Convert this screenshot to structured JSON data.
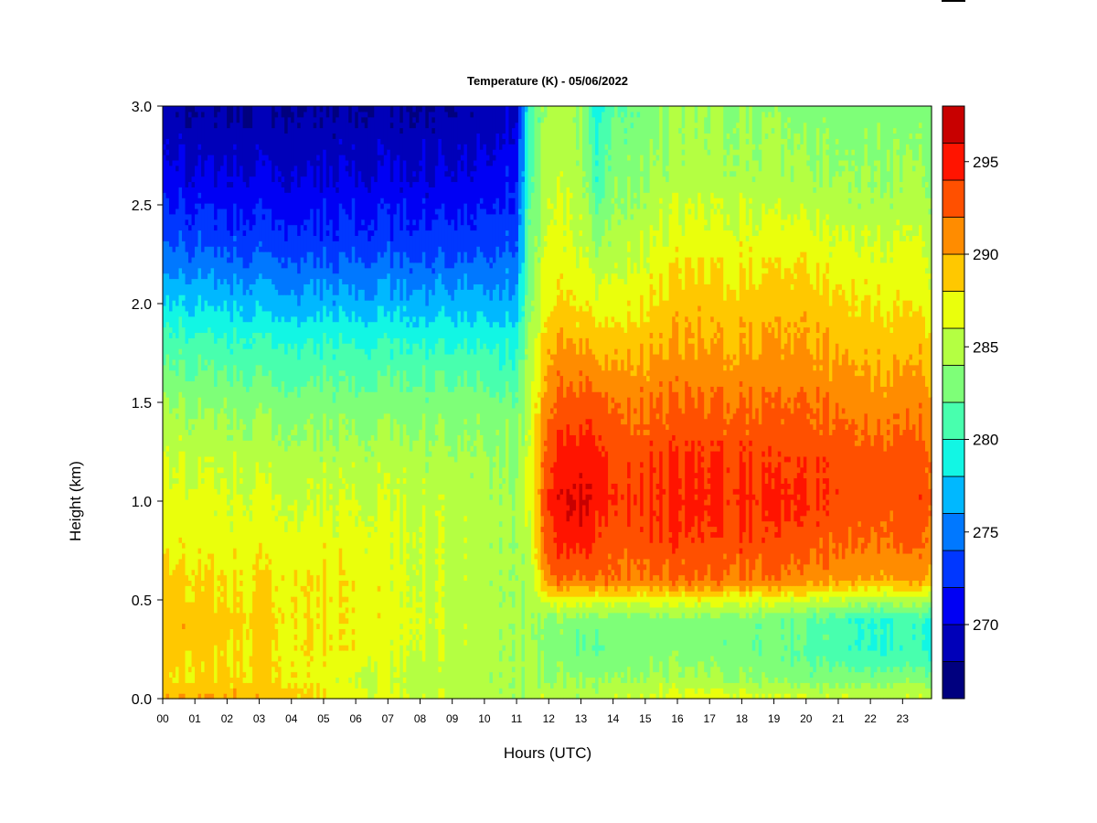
{
  "chart_data": {
    "type": "heatmap",
    "title": "Temperature (K) - 05/06/2022",
    "xlabel": "Hours (UTC)",
    "ylabel": "Height (km)",
    "xlim": [
      0,
      23.9
    ],
    "ylim": [
      0,
      3.0
    ],
    "x_ticks": [
      {
        "value": 0,
        "label": "00"
      },
      {
        "value": 1,
        "label": "01"
      },
      {
        "value": 2,
        "label": "02"
      },
      {
        "value": 3,
        "label": "03"
      },
      {
        "value": 4,
        "label": "04"
      },
      {
        "value": 5,
        "label": "05"
      },
      {
        "value": 6,
        "label": "06"
      },
      {
        "value": 7,
        "label": "07"
      },
      {
        "value": 8,
        "label": "08"
      },
      {
        "value": 9,
        "label": "09"
      },
      {
        "value": 10,
        "label": "10"
      },
      {
        "value": 11,
        "label": "11"
      },
      {
        "value": 12,
        "label": "12"
      },
      {
        "value": 13,
        "label": "13"
      },
      {
        "value": 14,
        "label": "14"
      },
      {
        "value": 15,
        "label": "15"
      },
      {
        "value": 16,
        "label": "16"
      },
      {
        "value": 17,
        "label": "17"
      },
      {
        "value": 18,
        "label": "18"
      },
      {
        "value": 19,
        "label": "19"
      },
      {
        "value": 20,
        "label": "20"
      },
      {
        "value": 21,
        "label": "21"
      },
      {
        "value": 22,
        "label": "22"
      },
      {
        "value": 23,
        "label": "23"
      }
    ],
    "y_ticks": [
      {
        "value": 0.0,
        "label": "0.0"
      },
      {
        "value": 0.5,
        "label": "0.5"
      },
      {
        "value": 1.0,
        "label": "1.0"
      },
      {
        "value": 1.5,
        "label": "1.5"
      },
      {
        "value": 2.0,
        "label": "2.0"
      },
      {
        "value": 2.5,
        "label": "2.5"
      },
      {
        "value": 3.0,
        "label": "3.0"
      }
    ],
    "colorbar": {
      "min": 266,
      "max": 298,
      "step": 2,
      "colors": [
        "#00007f",
        "#0000b9",
        "#0000f4",
        "#0037ff",
        "#0078ff",
        "#00b8ff",
        "#12f6e4",
        "#48ffae",
        "#7eff78",
        "#b4ff42",
        "#eaff0c",
        "#ffc800",
        "#ff8c00",
        "#ff5000",
        "#ff1400",
        "#c80000"
      ],
      "ticks": [
        {
          "value": 270,
          "label": "270"
        },
        {
          "value": 275,
          "label": "275"
        },
        {
          "value": 280,
          "label": "280"
        },
        {
          "value": 285,
          "label": "285"
        },
        {
          "value": 290,
          "label": "290"
        },
        {
          "value": 295,
          "label": "295"
        }
      ]
    },
    "z_hours": [
      0,
      2,
      4,
      6,
      8,
      10,
      11,
      11.4,
      12,
      13,
      13.5,
      14,
      16,
      18,
      20,
      22,
      23.9
    ],
    "z_heights_km": [
      0.0,
      0.1,
      0.25,
      0.4,
      0.5,
      0.6,
      0.8,
      1.0,
      1.2,
      1.5,
      1.8,
      2.0,
      2.3,
      2.6,
      3.0
    ],
    "z_kelvin": [
      [
        290,
        290,
        289,
        287,
        286,
        285,
        284.5,
        284,
        286,
        285,
        285,
        286,
        287,
        287,
        286,
        286,
        286
      ],
      [
        288,
        288.5,
        288,
        286,
        285,
        285,
        284.5,
        284,
        284,
        284,
        284,
        284,
        284.5,
        284,
        283,
        283,
        283
      ],
      [
        289,
        288,
        288,
        287.5,
        286,
        285,
        284.5,
        284,
        283,
        282,
        282,
        283,
        283,
        283,
        281.5,
        280,
        280
      ],
      [
        289.5,
        289,
        288,
        287.5,
        286.5,
        285,
        284.5,
        284,
        284,
        283,
        283,
        283,
        283,
        283,
        282,
        280,
        280
      ],
      [
        289,
        288,
        288,
        287.5,
        286,
        285,
        284.5,
        284,
        287,
        287,
        287,
        287,
        287,
        287,
        286,
        285,
        285
      ],
      [
        289,
        288,
        288,
        287.5,
        286,
        285,
        284.5,
        284,
        292,
        292,
        292,
        292,
        292,
        292,
        291,
        290,
        290
      ],
      [
        287,
        287,
        287,
        287,
        286,
        285,
        284.5,
        285,
        294,
        295,
        294,
        293,
        293.5,
        293.5,
        293,
        292,
        292
      ],
      [
        287,
        286.5,
        286,
        286,
        285.5,
        285,
        284.5,
        286,
        295,
        296.5,
        295,
        294,
        294.5,
        294.5,
        294,
        293,
        293
      ],
      [
        286,
        285.5,
        285,
        285,
        285,
        284.5,
        284,
        286,
        294,
        295.5,
        295,
        293.5,
        294,
        294,
        293.5,
        293,
        292.5
      ],
      [
        284,
        283.5,
        283,
        283,
        283,
        283,
        282.5,
        285,
        292,
        293,
        293,
        292,
        292,
        292,
        292,
        291,
        291
      ],
      [
        281,
        280.5,
        280,
        280,
        280,
        280,
        279.5,
        284,
        290,
        290,
        289,
        289,
        290,
        290,
        290,
        289,
        289
      ],
      [
        278,
        277.5,
        277,
        277,
        277,
        277,
        277,
        283,
        288,
        288,
        287,
        287,
        289,
        289,
        289,
        288,
        287
      ],
      [
        274,
        273.5,
        273,
        273,
        273,
        273.5,
        274,
        282,
        287,
        286,
        284,
        285,
        287,
        287,
        287,
        286,
        286
      ],
      [
        271,
        270.5,
        270.5,
        270.5,
        270.5,
        271,
        272,
        281,
        286,
        285,
        281,
        283.5,
        285,
        285,
        284.5,
        284,
        284
      ],
      [
        268,
        268,
        268,
        268,
        268,
        268.5,
        270,
        280,
        285,
        284,
        279,
        282,
        284,
        284,
        283,
        283,
        283
      ]
    ]
  }
}
